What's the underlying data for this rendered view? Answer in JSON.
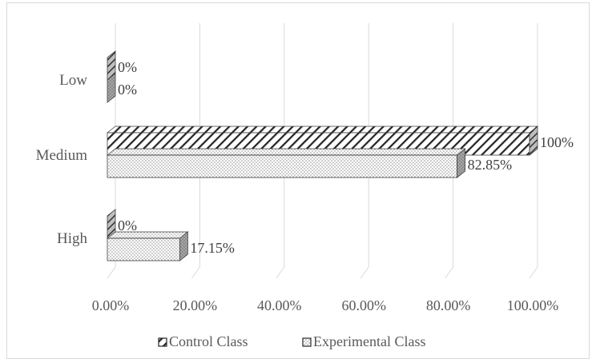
{
  "chart_data": {
    "type": "bar",
    "orientation": "horizontal",
    "style": "3d-clustered",
    "categories": [
      "Low",
      "Medium",
      "High"
    ],
    "series": [
      {
        "name": "Control Class",
        "values": [
          0,
          100,
          0
        ],
        "labels": [
          "0%",
          "100%",
          "0%"
        ],
        "pattern": "diagonal-hatch"
      },
      {
        "name": "Experimental Class",
        "values": [
          0,
          82.85,
          17.15
        ],
        "labels": [
          "0%",
          "82.85%",
          "17.15%"
        ],
        "pattern": "dots"
      }
    ],
    "xlim": [
      0,
      100
    ],
    "xticks": [
      "0.00%",
      "20.00%",
      "40.00%",
      "60.00%",
      "80.00%",
      "100.00%"
    ],
    "grid": true,
    "legend_position": "bottom"
  }
}
